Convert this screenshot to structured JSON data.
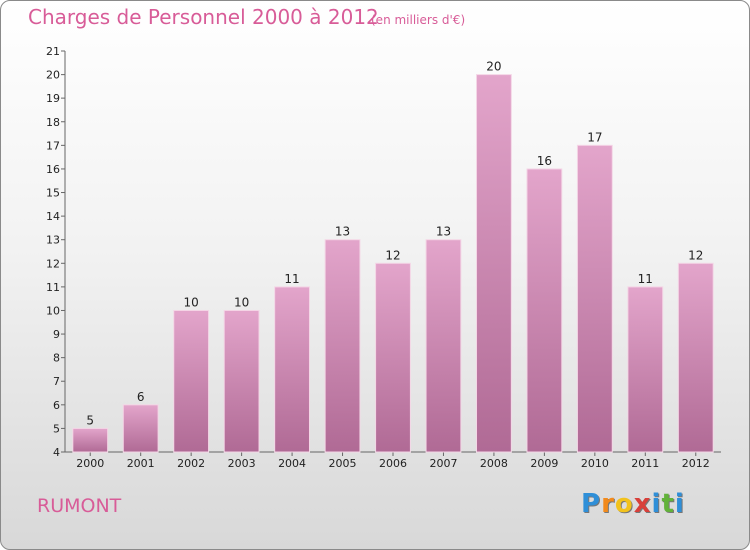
{
  "header": {
    "title": "Charges de Personnel 2000 à 2012",
    "subtitle": "(en milliers d'€)"
  },
  "footer": {
    "commune": "RUMONT",
    "logo": [
      "P",
      "r",
      "o",
      "x",
      "i",
      "t",
      "i"
    ],
    "logo_colors": [
      "#2f8fd8",
      "#f28a1c",
      "#f2c21c",
      "#d8403a",
      "#2f8fd8",
      "#62b23a",
      "#2f8fd8"
    ]
  },
  "chart_data": {
    "type": "bar",
    "categories": [
      "2000",
      "2001",
      "2002",
      "2003",
      "2004",
      "2005",
      "2006",
      "2007",
      "2008",
      "2009",
      "2010",
      "2011",
      "2012"
    ],
    "values": [
      5,
      6,
      10,
      10,
      11,
      13,
      12,
      13,
      20,
      16,
      17,
      11,
      12
    ],
    "ylim": [
      4,
      21
    ],
    "yticks": [
      4,
      5,
      6,
      7,
      8,
      9,
      10,
      11,
      12,
      13,
      14,
      15,
      16,
      17,
      18,
      19,
      20,
      21
    ],
    "bar_color": "#d98cb8",
    "grid": false
  }
}
